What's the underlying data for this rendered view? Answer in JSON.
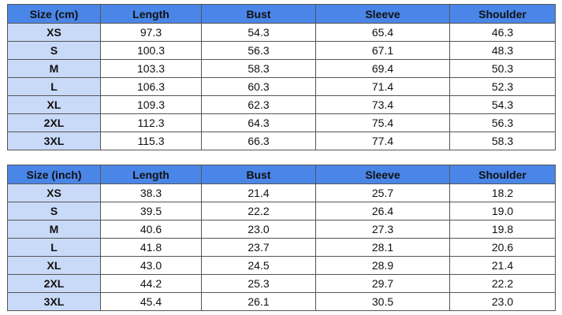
{
  "colors": {
    "header_bg": "#4a86e8",
    "size_col_bg": "#c9daf8"
  },
  "tables": [
    {
      "headers": [
        "Size (cm)",
        "Length",
        "Bust",
        "Sleeve",
        "Shoulder"
      ],
      "rows": [
        [
          "XS",
          "97.3",
          "54.3",
          "65.4",
          "46.3"
        ],
        [
          "S",
          "100.3",
          "56.3",
          "67.1",
          "48.3"
        ],
        [
          "M",
          "103.3",
          "58.3",
          "69.4",
          "50.3"
        ],
        [
          "L",
          "106.3",
          "60.3",
          "71.4",
          "52.3"
        ],
        [
          "XL",
          "109.3",
          "62.3",
          "73.4",
          "54.3"
        ],
        [
          "2XL",
          "112.3",
          "64.3",
          "75.4",
          "56.3"
        ],
        [
          "3XL",
          "115.3",
          "66.3",
          "77.4",
          "58.3"
        ]
      ]
    },
    {
      "headers": [
        "Size (inch)",
        "Length",
        "Bust",
        "Sleeve",
        "Shoulder"
      ],
      "rows": [
        [
          "XS",
          "38.3",
          "21.4",
          "25.7",
          "18.2"
        ],
        [
          "S",
          "39.5",
          "22.2",
          "26.4",
          "19.0"
        ],
        [
          "M",
          "40.6",
          "23.0",
          "27.3",
          "19.8"
        ],
        [
          "L",
          "41.8",
          "23.7",
          "28.1",
          "20.6"
        ],
        [
          "XL",
          "43.0",
          "24.5",
          "28.9",
          "21.4"
        ],
        [
          "2XL",
          "44.2",
          "25.3",
          "29.7",
          "22.2"
        ],
        [
          "3XL",
          "45.4",
          "26.1",
          "30.5",
          "23.0"
        ]
      ]
    }
  ]
}
